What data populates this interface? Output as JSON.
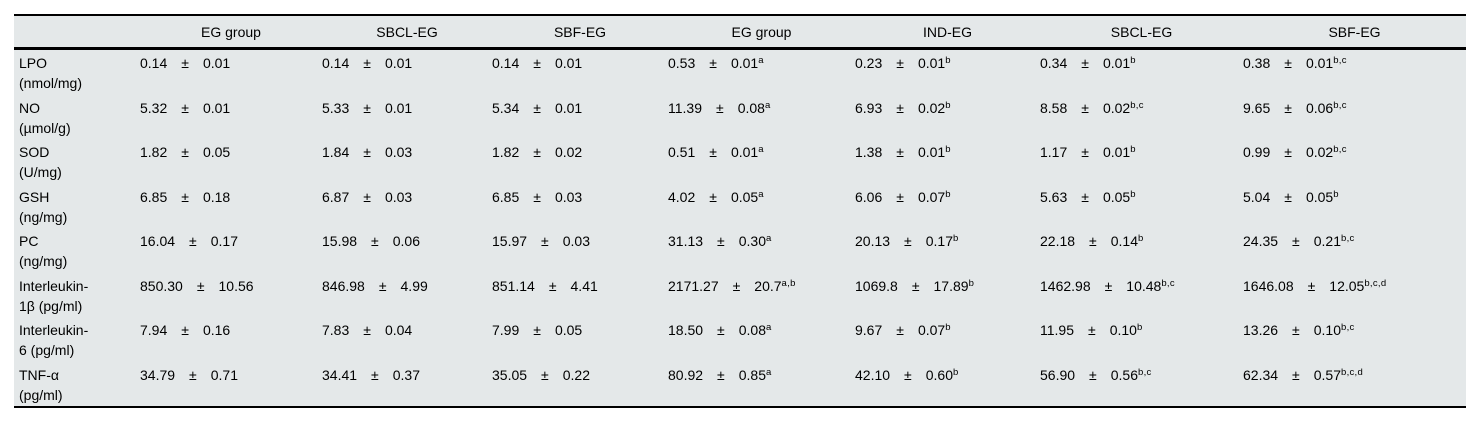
{
  "table": {
    "plus_minus": "±",
    "columns": [
      "",
      "EG group",
      "SBCL-EG",
      "SBF-EG",
      "EG group",
      "IND-EG",
      "SBCL-EG",
      "SBF-EG"
    ],
    "rows": [
      {
        "label_line1": "LPO",
        "label_line2": "(nmol/mg)",
        "values": [
          {
            "mean": "0.14",
            "sd": "0.01",
            "sup": ""
          },
          {
            "mean": "0.14",
            "sd": "0.01",
            "sup": ""
          },
          {
            "mean": "0.14",
            "sd": "0.01",
            "sup": ""
          },
          {
            "mean": "0.53",
            "sd": "0.01",
            "sup": "a"
          },
          {
            "mean": "0.23",
            "sd": "0.01",
            "sup": "b"
          },
          {
            "mean": "0.34",
            "sd": "0.01",
            "sup": "b"
          },
          {
            "mean": "0.38",
            "sd": "0.01",
            "sup": "b,c"
          }
        ]
      },
      {
        "label_line1": "NO",
        "label_line2": "(µmol/g)",
        "values": [
          {
            "mean": "5.32",
            "sd": "0.01",
            "sup": ""
          },
          {
            "mean": "5.33",
            "sd": "0.01",
            "sup": ""
          },
          {
            "mean": "5.34",
            "sd": "0.01",
            "sup": ""
          },
          {
            "mean": "11.39",
            "sd": "0.08",
            "sup": "a"
          },
          {
            "mean": "6.93",
            "sd": "0.02",
            "sup": "b"
          },
          {
            "mean": "8.58",
            "sd": "0.02",
            "sup": "b,c"
          },
          {
            "mean": "9.65",
            "sd": "0.06",
            "sup": "b,c"
          }
        ]
      },
      {
        "label_line1": "SOD",
        "label_line2": "(U/mg)",
        "values": [
          {
            "mean": "1.82",
            "sd": "0.05",
            "sup": ""
          },
          {
            "mean": "1.84",
            "sd": "0.03",
            "sup": ""
          },
          {
            "mean": "1.82",
            "sd": "0.02",
            "sup": ""
          },
          {
            "mean": "0.51",
            "sd": "0.01",
            "sup": "a"
          },
          {
            "mean": "1.38",
            "sd": "0.01",
            "sup": "b"
          },
          {
            "mean": "1.17",
            "sd": "0.01",
            "sup": "b"
          },
          {
            "mean": "0.99",
            "sd": "0.02",
            "sup": "b,c"
          }
        ]
      },
      {
        "label_line1": "GSH",
        "label_line2": "(ng/mg)",
        "values": [
          {
            "mean": "6.85",
            "sd": "0.18",
            "sup": ""
          },
          {
            "mean": "6.87",
            "sd": "0.03",
            "sup": ""
          },
          {
            "mean": "6.85",
            "sd": "0.03",
            "sup": ""
          },
          {
            "mean": "4.02",
            "sd": "0.05",
            "sup": "a"
          },
          {
            "mean": "6.06",
            "sd": "0.07",
            "sup": "b"
          },
          {
            "mean": "5.63",
            "sd": "0.05",
            "sup": "b"
          },
          {
            "mean": "5.04",
            "sd": "0.05",
            "sup": "b"
          }
        ]
      },
      {
        "label_line1": "PC",
        "label_line2": "(ng/mg)",
        "values": [
          {
            "mean": "16.04",
            "sd": "0.17",
            "sup": ""
          },
          {
            "mean": "15.98",
            "sd": "0.06",
            "sup": ""
          },
          {
            "mean": "15.97",
            "sd": "0.03",
            "sup": ""
          },
          {
            "mean": "31.13",
            "sd": "0.30",
            "sup": "a"
          },
          {
            "mean": "20.13",
            "sd": "0.17",
            "sup": "b"
          },
          {
            "mean": "22.18",
            "sd": "0.14",
            "sup": "b"
          },
          {
            "mean": "24.35",
            "sd": "0.21",
            "sup": "b,c"
          }
        ]
      },
      {
        "label_line1": "Interleukin-",
        "label_line2": "1β (pg/ml)",
        "values": [
          {
            "mean": "850.30",
            "sd": "10.56",
            "sup": ""
          },
          {
            "mean": "846.98",
            "sd": "4.99",
            "sup": ""
          },
          {
            "mean": "851.14",
            "sd": "4.41",
            "sup": ""
          },
          {
            "mean": "2171.27",
            "sd": "20.7",
            "sup": "a,b"
          },
          {
            "mean": "1069.8",
            "sd": "17.89",
            "sup": "b"
          },
          {
            "mean": "1462.98",
            "sd": "10.48",
            "sup": "b,c"
          },
          {
            "mean": "1646.08",
            "sd": "12.05",
            "sup": "b,c,d"
          }
        ]
      },
      {
        "label_line1": "Interleukin-",
        "label_line2": "6 (pg/ml)",
        "values": [
          {
            "mean": "7.94",
            "sd": "0.16",
            "sup": ""
          },
          {
            "mean": "7.83",
            "sd": "0.04",
            "sup": ""
          },
          {
            "mean": "7.99",
            "sd": "0.05",
            "sup": ""
          },
          {
            "mean": "18.50",
            "sd": "0.08",
            "sup": "a"
          },
          {
            "mean": "9.67",
            "sd": "0.07",
            "sup": "b"
          },
          {
            "mean": "11.95",
            "sd": "0.10",
            "sup": "b"
          },
          {
            "mean": "13.26",
            "sd": "0.10",
            "sup": "b,c"
          }
        ]
      },
      {
        "label_line1": "TNF-α",
        "label_line2": "(pg/ml)",
        "values": [
          {
            "mean": "34.79",
            "sd": "0.71",
            "sup": ""
          },
          {
            "mean": "34.41",
            "sd": "0.37",
            "sup": ""
          },
          {
            "mean": "35.05",
            "sd": "0.22",
            "sup": ""
          },
          {
            "mean": "80.92",
            "sd": "0.85",
            "sup": "a"
          },
          {
            "mean": "42.10",
            "sd": "0.60",
            "sup": "b"
          },
          {
            "mean": "56.90",
            "sd": "0.56",
            "sup": "b,c"
          },
          {
            "mean": "62.34",
            "sd": "0.57",
            "sup": "b,c,d"
          }
        ]
      }
    ]
  },
  "colors": {
    "table_background": "#e4e8e9",
    "rule": "#000000",
    "text": "#000000"
  }
}
